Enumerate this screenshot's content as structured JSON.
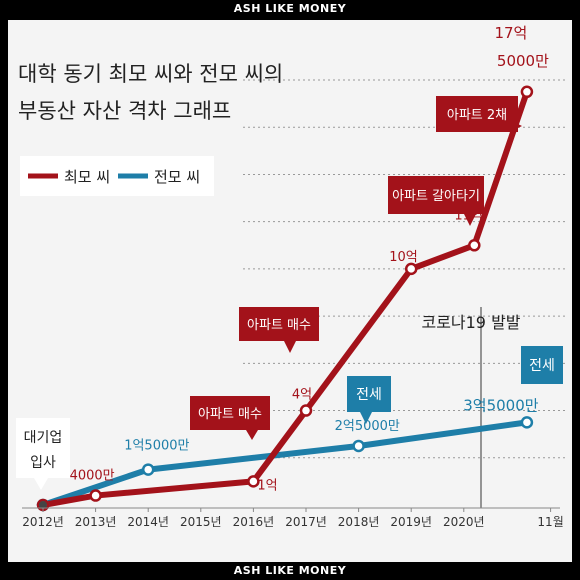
{
  "header": {
    "banner_top": "ASH LIKE MONEY",
    "banner_bottom": "ASH LIKE MONEY"
  },
  "chart_data": {
    "type": "line",
    "title": "대학 동기 최모 씨와 전모 씨의 부동산 자산 격차 그래프",
    "title_lines": [
      "대학 동기 최모 씨와 전모 씨의",
      "부동산 자산 격차 그래프"
    ],
    "x_labels": [
      "2012년",
      "2013년",
      "2014년",
      "2015년",
      "2016년",
      "2017년",
      "2018년",
      "2019년",
      "2020년",
      "11월"
    ],
    "legend": {
      "placement": "top-left"
    },
    "series": [
      {
        "name": "최모 씨",
        "color": "#a3121a",
        "points": [
          [
            0,
            0
          ],
          [
            1,
            4000
          ],
          [
            4,
            10000
          ],
          [
            5,
            40000
          ],
          [
            7,
            100000
          ],
          [
            8.2,
            110000
          ],
          [
            9.2,
            175000
          ]
        ]
      },
      {
        "name": "전모 씨",
        "color": "#1e7ea8",
        "points": [
          [
            0,
            0
          ],
          [
            2,
            15000
          ],
          [
            6,
            25000
          ],
          [
            9.2,
            35000
          ]
        ]
      }
    ],
    "value_labels": [
      {
        "series": 0,
        "point": 1,
        "text": "4000만"
      },
      {
        "series": 0,
        "point": 2,
        "text": "1억"
      },
      {
        "series": 0,
        "point": 3,
        "text": "4억"
      },
      {
        "series": 0,
        "point": 4,
        "text": "10억"
      },
      {
        "series": 0,
        "point": 5,
        "text": "11억"
      },
      {
        "series": 0,
        "point": 6,
        "text": "17억",
        "text2": "5000만"
      },
      {
        "series": 1,
        "point": 1,
        "text": "1억5000만"
      },
      {
        "series": 1,
        "point": 2,
        "text": "2억5000만"
      },
      {
        "series": 1,
        "point": 3,
        "text": "3억5000만"
      }
    ],
    "annotations": [
      {
        "text": "대기업",
        "text2": "입사",
        "style": "plain"
      },
      {
        "text": "아파트 매수",
        "style": "red"
      },
      {
        "text": "아파트 매수",
        "style": "red"
      },
      {
        "text": "아파트 갈아타기",
        "style": "red"
      },
      {
        "text": "아파트 2채",
        "style": "red"
      },
      {
        "text": "전세",
        "style": "blue"
      },
      {
        "text": "전세",
        "style": "blue"
      },
      {
        "text": "코로나19 발발",
        "style": "plain"
      }
    ],
    "ylim": [
      0,
      180000
    ],
    "grid": "horizontal dotted"
  }
}
